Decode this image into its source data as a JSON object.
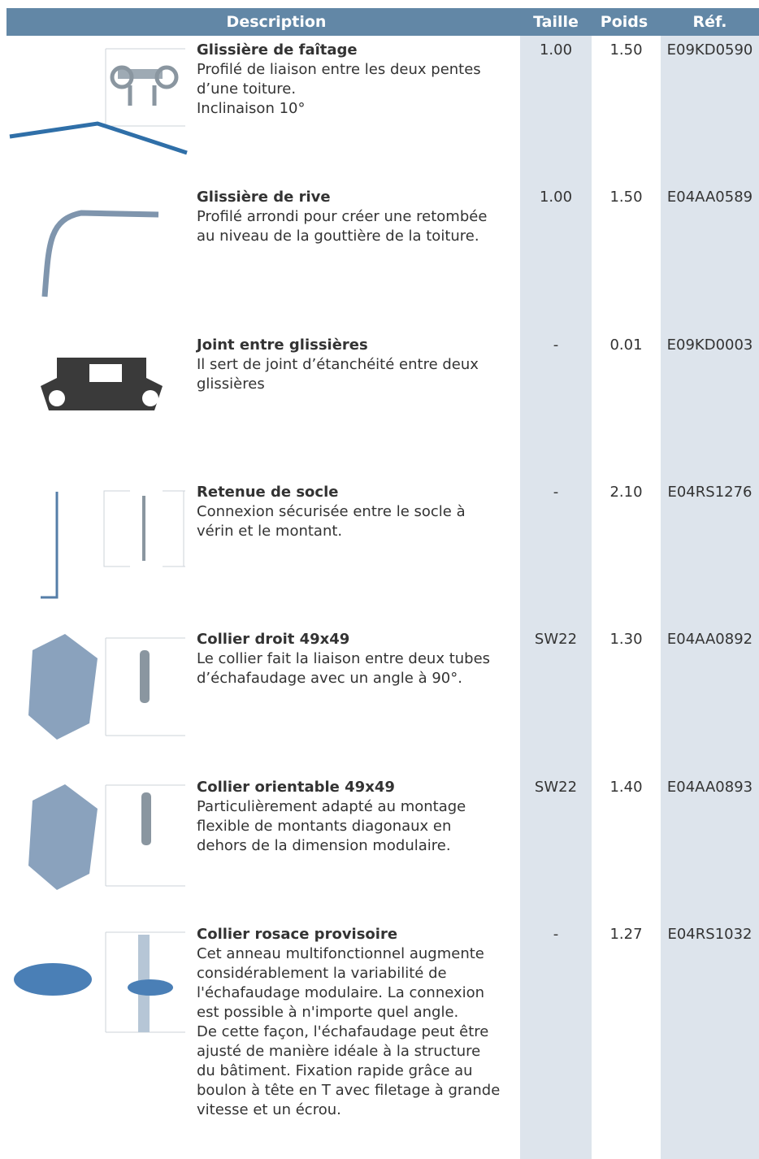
{
  "table": {
    "header": [
      "Description",
      "Taille",
      "Poids",
      "Réf."
    ],
    "rows": [
      {
        "name": "Glissière de faîtage",
        "desc": [
          "Profilé de liaison entre les deux pentes",
          "d’une toiture.",
          "Inclinaison 10°"
        ],
        "taille": "1.00",
        "poids": "1.50",
        "ref": "E09KD0590"
      },
      {
        "name": "Glissière de rive",
        "desc": [
          "Profilé arrondi pour créer une retombée",
          "au niveau de la gouttière de la toiture."
        ],
        "taille": "1.00",
        "poids": "1.50",
        "ref": "E04AA0589"
      },
      {
        "name": "Joint entre glissières",
        "desc": [
          "Il sert de joint d’étanchéité entre deux",
          "glissières"
        ],
        "taille": "-",
        "poids": "0.01",
        "ref": "E09KD0003"
      },
      {
        "name": "Retenue de socle",
        "desc": [
          "Connexion sécurisée entre le socle à",
          "vérin et le montant."
        ],
        "taille": "-",
        "poids": "2.10",
        "ref": "E04RS1276"
      },
      {
        "name": "Collier droit 49x49",
        "desc": [
          "Le collier fait la liaison entre deux tubes",
          "d’échafaudage avec un angle à 90°."
        ],
        "taille": "SW22",
        "poids": "1.30",
        "ref": "E04AA0892"
      },
      {
        "name": "Collier orientable 49x49",
        "desc": [
          "Particulièrement adapté au montage",
          "flexible de montants diagonaux en",
          "dehors de la dimension modulaire."
        ],
        "taille": "SW22",
        "poids": "1.40",
        "ref": "E04AA0893"
      },
      {
        "name": "Collier rosace provisoire",
        "desc": [
          "Cet anneau multifonctionnel augmente",
          "considérablement la variabilité de",
          "l'échafaudage modulaire. La connexion",
          "est possible à n'importe quel angle.",
          "De cette façon, l'échafaudage peut être",
          "ajusté de manière idéale à la structure",
          "du bâtiment. Fixation rapide grâce au",
          "boulon à tête en T avec filetage à grande",
          "vitesse et un écrou."
        ],
        "taille": "-",
        "poids": "1.27",
        "ref": "E04RS1032"
      }
    ]
  }
}
